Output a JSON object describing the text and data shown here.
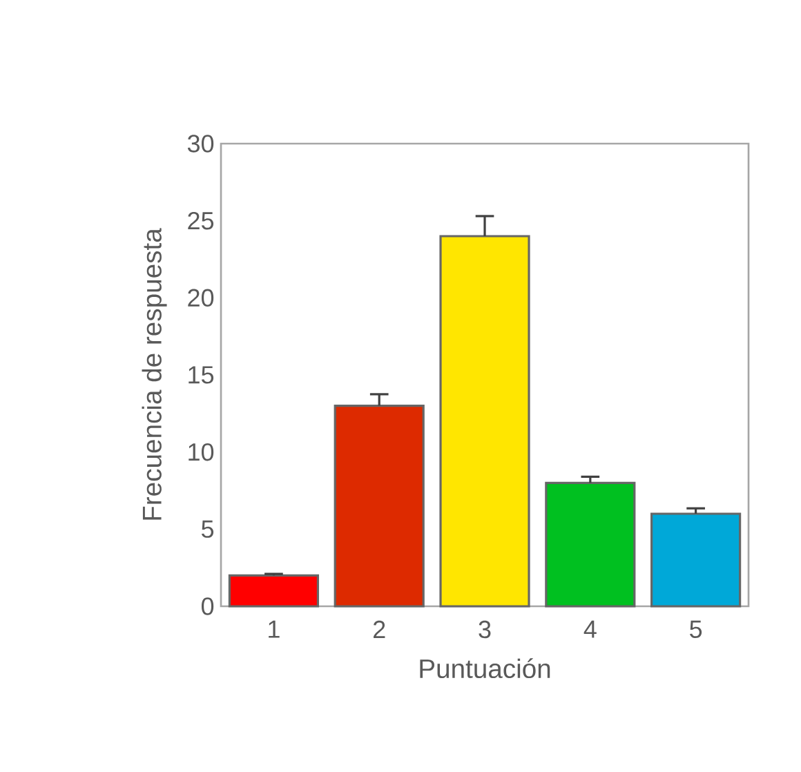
{
  "chart_data": {
    "type": "bar",
    "xlabel": "Puntuación",
    "ylabel": "Frecuencia de respuesta",
    "categories": [
      "1",
      "2",
      "3",
      "4",
      "5"
    ],
    "values": [
      2,
      13,
      24,
      8,
      6
    ],
    "errors": [
      [
        2,
        2.1
      ],
      [
        13,
        13.75
      ],
      [
        24,
        25.3
      ],
      [
        8,
        8.4
      ],
      [
        6,
        6.35
      ]
    ],
    "colors": [
      "#ff0000",
      "#dd2a00",
      "#ffe600",
      "#00c020",
      "#00a8d8"
    ],
    "ylim": [
      0,
      30
    ],
    "yticks": [
      0,
      5,
      10,
      15,
      20,
      25,
      30
    ],
    "grid": false
  }
}
